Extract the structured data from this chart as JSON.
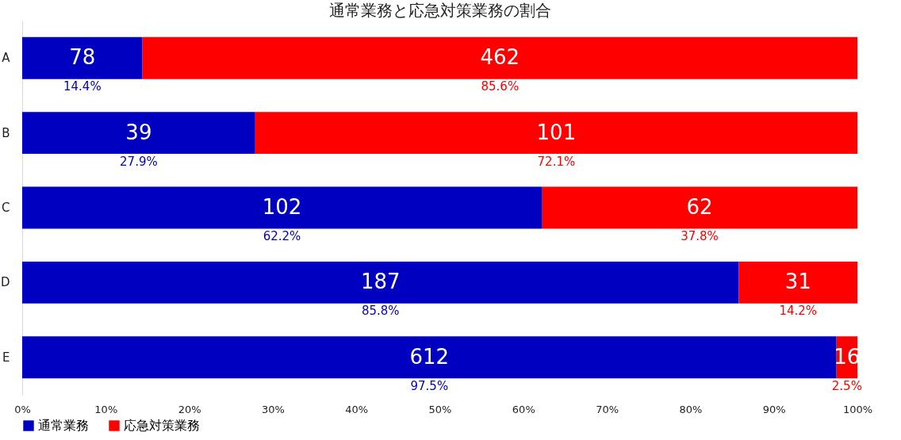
{
  "chart_data": {
    "type": "bar",
    "title": "通常業務と応急対策業務の割合",
    "orientation": "horizontal",
    "stacked": true,
    "categories": [
      "A",
      "B",
      "C",
      "D",
      "E"
    ],
    "series": [
      {
        "name": "通常業務",
        "color": "#0000c0",
        "values": [
          14.4,
          27.9,
          62.2,
          85.8,
          97.5
        ],
        "value_labels": [
          "14.4%",
          "27.9%",
          "62.2%",
          "85.8%",
          "97.5%"
        ]
      },
      {
        "name": "応急対策業務",
        "color": "#ff0000",
        "values": [
          85.6,
          72.1,
          37.8,
          14.2,
          2.5
        ],
        "value_labels": [
          "85.6%",
          "72.1%",
          "37.8%",
          "14.2%",
          "2.5%"
        ]
      }
    ],
    "xlim": [
      0,
      100
    ],
    "xticks": [
      {
        "value": 0,
        "label": "0%"
      },
      {
        "value": 10,
        "label": "10%"
      },
      {
        "value": 20,
        "label": "20%"
      },
      {
        "value": 30,
        "label": "30%"
      },
      {
        "value": 40,
        "label": "40%"
      },
      {
        "value": 50,
        "label": "50%"
      },
      {
        "value": 60,
        "label": "60%"
      },
      {
        "value": 70,
        "label": "70%"
      },
      {
        "value": 80,
        "label": "80%"
      },
      {
        "value": 90,
        "label": "90%"
      },
      {
        "value": 100,
        "label": "100%"
      }
    ],
    "annotations": [
      "78",
      "39",
      "102",
      "187",
      "612",
      "462",
      "101",
      "62",
      "31",
      "16"
    ],
    "legend": "bottom",
    "grid": false
  }
}
